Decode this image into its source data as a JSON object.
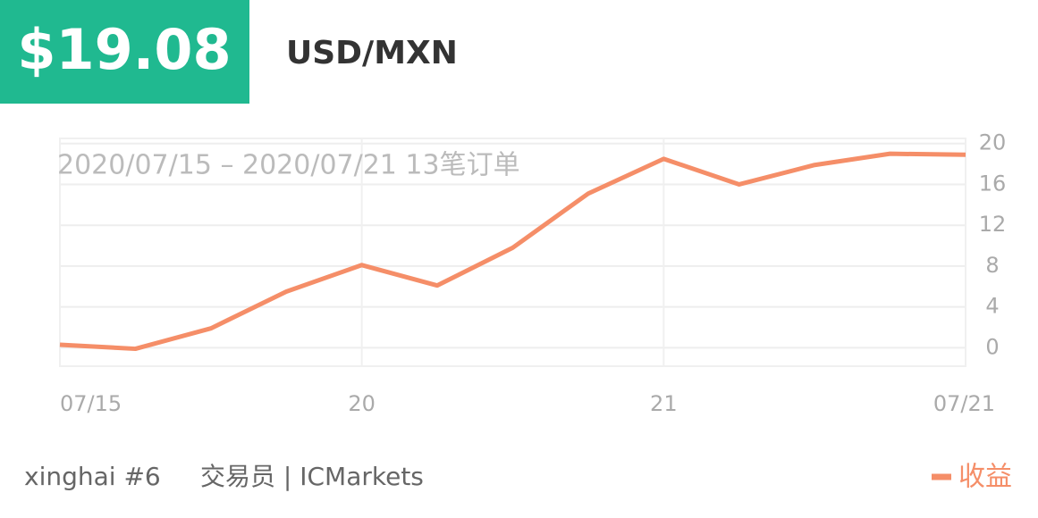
{
  "header": {
    "price": "$19.08",
    "pair": "USD/MXN"
  },
  "footer": {
    "trader": "xinghai #6",
    "role": "交易员 | ICMarkets"
  },
  "chart_data": {
    "type": "line",
    "annotation": "2020/07/15 – 2020/07/21  13笔订单",
    "categories": [
      "07/15",
      null,
      null,
      null,
      "20",
      null,
      null,
      null,
      "21",
      null,
      null,
      null,
      "07/21"
    ],
    "series": [
      {
        "name": "收益",
        "color": "#f58e68",
        "values": [
          0.3,
          -0.1,
          1.9,
          5.5,
          8.1,
          6.1,
          9.8,
          15.1,
          18.5,
          16.0,
          17.9,
          19.0,
          18.9
        ]
      }
    ],
    "ylim": [
      -1.8,
      20.5
    ],
    "yticks": [
      0,
      4,
      8,
      12,
      16,
      20
    ],
    "grid": true,
    "legend": "bottom-right"
  }
}
